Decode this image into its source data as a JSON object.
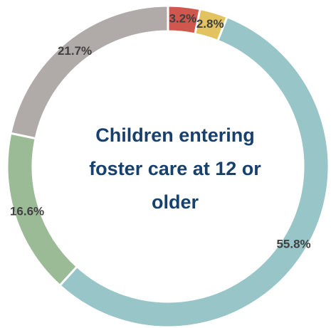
{
  "chart_data": {
    "type": "donut",
    "title": "Children entering foster care at 12 or older",
    "categories": [
      null,
      null,
      null,
      null,
      null
    ],
    "values": [
      3.2,
      2.8,
      55.8,
      16.6,
      21.7
    ],
    "value_labels": [
      "3.2%",
      "2.8%",
      "55.8%",
      "16.6%",
      "21.7%"
    ],
    "colors": [
      "#d0574e",
      "#e3c35f",
      "#98c5c7",
      "#9bbb97",
      "#b0aba8"
    ]
  }
}
